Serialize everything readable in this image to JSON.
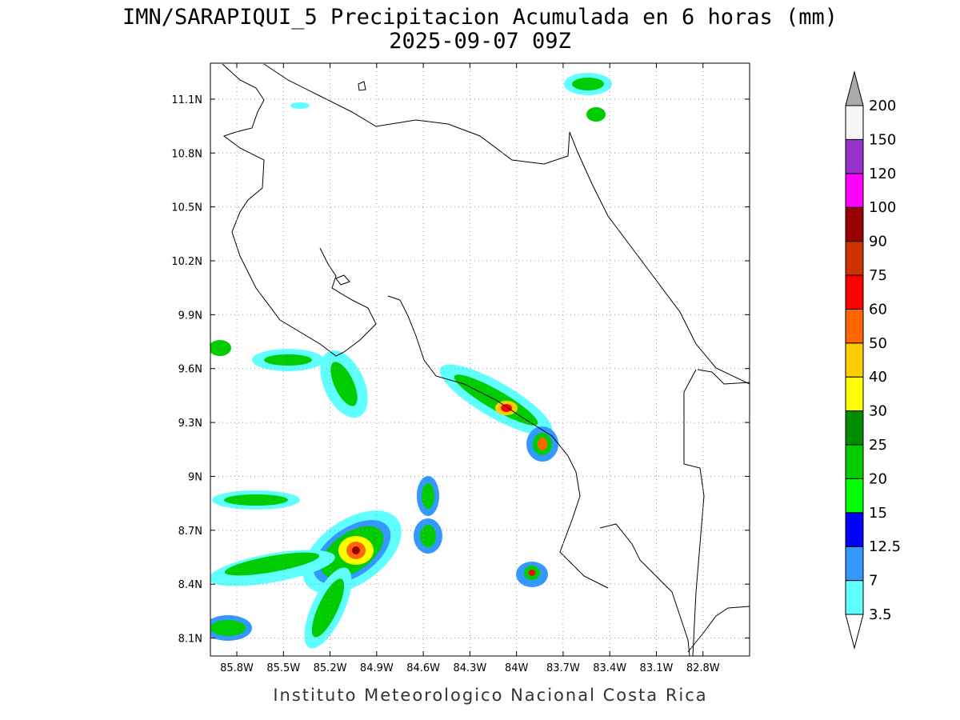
{
  "title": "IMN/SARAPIQUI_5 Precipitacion Acumulada en 6 horas (mm)",
  "subtitle": "2025-09-07 09Z",
  "footer": "Instituto Meteorologico Nacional Costa Rica",
  "map": {
    "xlim": [
      -85.97,
      -82.5
    ],
    "ylim": [
      8.0,
      11.3
    ],
    "grid": true,
    "xticks": [
      {
        "value": -85.8,
        "label": "85.8W"
      },
      {
        "value": -85.5,
        "label": "85.5W"
      },
      {
        "value": -85.2,
        "label": "85.2W"
      },
      {
        "value": -84.9,
        "label": "84.9W"
      },
      {
        "value": -84.6,
        "label": "84.6W"
      },
      {
        "value": -84.3,
        "label": "84.3W"
      },
      {
        "value": -84.0,
        "label": "84W"
      },
      {
        "value": -83.7,
        "label": "83.7W"
      },
      {
        "value": -83.4,
        "label": "83.4W"
      },
      {
        "value": -83.1,
        "label": "83.1W"
      },
      {
        "value": -82.8,
        "label": "82.8W"
      }
    ],
    "yticks": [
      {
        "value": 8.1,
        "label": "8.1N"
      },
      {
        "value": 8.4,
        "label": "8.4N"
      },
      {
        "value": 8.7,
        "label": "8.7N"
      },
      {
        "value": 9.0,
        "label": "9N"
      },
      {
        "value": 9.3,
        "label": "9.3N"
      },
      {
        "value": 9.6,
        "label": "9.6N"
      },
      {
        "value": 9.9,
        "label": "9.9N"
      },
      {
        "value": 10.2,
        "label": "10.2N"
      },
      {
        "value": 10.5,
        "label": "10.5N"
      },
      {
        "value": 10.8,
        "label": "10.8N"
      },
      {
        "value": 11.1,
        "label": "11.1N"
      }
    ]
  },
  "colorbar": {
    "levels": [
      3.5,
      7,
      12.5,
      15,
      20,
      25,
      30,
      40,
      50,
      60,
      75,
      90,
      100,
      120,
      150,
      200
    ],
    "colors": [
      "#5fffff",
      "#3399ff",
      "#0000ff",
      "#00ff00",
      "#00cc00",
      "#008c00",
      "#ffff00",
      "#ffcc00",
      "#ff6600",
      "#ff0000",
      "#cc3300",
      "#990000",
      "#ff00ff",
      "#9933cc",
      "#f5f5f5"
    ],
    "under_color": "#ffffff",
    "over_color": "#aaaaaa"
  }
}
